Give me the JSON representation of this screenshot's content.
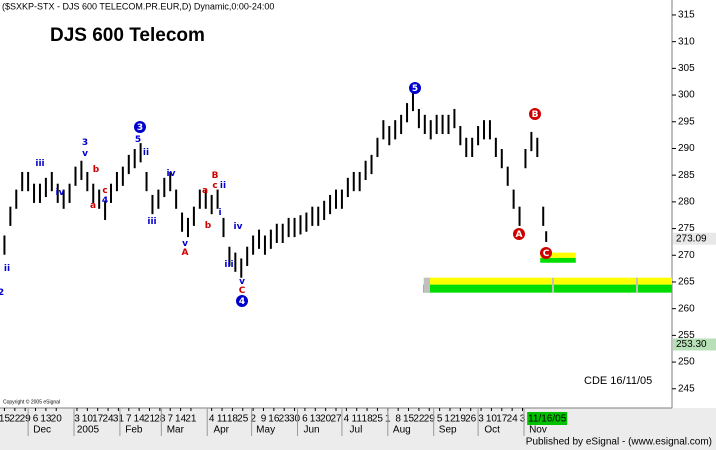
{
  "chart_data": {
    "type": "range",
    "header": "($SXKP-STX - DJS 600 TELECOM.PR.EUR,D) Dynamic,0:00-24:00",
    "title": "DJS 600 Telecom",
    "note": "CDE 16/11/05",
    "copyright": "Copyright © 2005 eSignal",
    "publisher": "Published by eSignal - (www.esignal.com)",
    "color": "#000000",
    "xlim": [
      -3,
      451
    ],
    "ylim": [
      241.4,
      317.8
    ],
    "yticks": [
      245,
      250,
      255,
      260,
      265,
      270,
      275,
      280,
      285,
      290,
      295,
      300,
      305,
      310,
      315
    ],
    "x": [
      0,
      4,
      8,
      12,
      16,
      20,
      24,
      28,
      32,
      36,
      40,
      44,
      48,
      52,
      56,
      60,
      64,
      68,
      72,
      76,
      80,
      84,
      88,
      92,
      96,
      100,
      104,
      108,
      112,
      116,
      120,
      124,
      128,
      132,
      136,
      140,
      144,
      148,
      152,
      156,
      160,
      164,
      168,
      172,
      176,
      180,
      184,
      188,
      192,
      196,
      200,
      204,
      208,
      212,
      216,
      220,
      224,
      228,
      232,
      236,
      240,
      244,
      248,
      252,
      256,
      260,
      264,
      268,
      272,
      276,
      280,
      284,
      288,
      292,
      296,
      300,
      304,
      308,
      312,
      316,
      320,
      324,
      328,
      332,
      336,
      340,
      344,
      348,
      352,
      356,
      360,
      364,
      366
    ],
    "high": [
      273.7,
      279.1,
      282.3,
      285.6,
      285.6,
      283.4,
      283.4,
      284.5,
      285.6,
      283.4,
      282.3,
      283.4,
      286.6,
      287.7,
      285.6,
      283.4,
      282.3,
      280.2,
      283.4,
      285.6,
      286.6,
      288.8,
      289.9,
      291,
      285.6,
      281.3,
      282.3,
      284.5,
      285.6,
      282.3,
      278,
      277,
      279.1,
      282.3,
      282.3,
      281.3,
      282.3,
      277,
      271.6,
      270.5,
      269.4,
      271.6,
      273.7,
      274.8,
      273.7,
      274.8,
      275.9,
      275.9,
      277,
      277,
      277.5,
      278,
      279.1,
      279.1,
      280.2,
      281.3,
      282.3,
      282.3,
      284.5,
      285.6,
      285.6,
      287.7,
      288.8,
      292,
      295.3,
      294.2,
      295.3,
      296.3,
      298.5,
      300.6,
      297.4,
      296.3,
      295.3,
      296.3,
      296.3,
      296.3,
      297.4,
      294.2,
      292,
      292,
      294.2,
      295.3,
      295.3,
      292,
      289.9,
      286.6,
      282.3,
      279.1,
      289.9,
      293.1,
      292,
      279.1,
      274.5
    ],
    "low": [
      270.1,
      275.5,
      278.7,
      282,
      282,
      279.8,
      279.8,
      280.9,
      282,
      279.8,
      278.7,
      279.8,
      283,
      284.1,
      282,
      279.8,
      278.7,
      276.6,
      279.8,
      282,
      283,
      285.2,
      286.3,
      287.4,
      282,
      277.7,
      278.7,
      280.9,
      282,
      278.7,
      274.4,
      273.4,
      275.5,
      278.7,
      278.7,
      277.7,
      278.7,
      273.4,
      268,
      266.9,
      265.8,
      268,
      270.1,
      271.2,
      270.1,
      271.2,
      272.3,
      272.3,
      273.4,
      273.4,
      273.9,
      274.4,
      275.5,
      275.5,
      276.6,
      277.7,
      278.7,
      278.7,
      280.9,
      282,
      282,
      284.1,
      285.2,
      288.4,
      291.7,
      290.6,
      291.7,
      292.7,
      294.9,
      297,
      293.8,
      292.7,
      291.7,
      292.7,
      292.7,
      292.7,
      293.8,
      290.6,
      288.4,
      288.4,
      290.6,
      291.7,
      291.7,
      288.4,
      286.3,
      283,
      278.7,
      275.5,
      286.3,
      289.5,
      288.4,
      275.5,
      272.5
    ],
    "xticks": [
      {
        "value": 0,
        "label": "15"
      },
      {
        "value": 7,
        "label": "22"
      },
      {
        "value": 14,
        "label": "29"
      },
      {
        "value": 21,
        "label": "6"
      },
      {
        "value": 28,
        "label": "13"
      },
      {
        "value": 35,
        "label": "20"
      },
      {
        "value": 49,
        "label": "3"
      },
      {
        "value": 56,
        "label": "10"
      },
      {
        "value": 63,
        "label": "17"
      },
      {
        "value": 70,
        "label": "24"
      },
      {
        "value": 77,
        "label": "31"
      },
      {
        "value": 84,
        "label": "7"
      },
      {
        "value": 91,
        "label": "14"
      },
      {
        "value": 98,
        "label": "21"
      },
      {
        "value": 105,
        "label": "28"
      },
      {
        "value": 112,
        "label": "7"
      },
      {
        "value": 119,
        "label": "14"
      },
      {
        "value": 126,
        "label": "21"
      },
      {
        "value": 140,
        "label": "4"
      },
      {
        "value": 147,
        "label": "11"
      },
      {
        "value": 154,
        "label": "18"
      },
      {
        "value": 161,
        "label": "25"
      },
      {
        "value": 168,
        "label": "2"
      },
      {
        "value": 175,
        "label": "9"
      },
      {
        "value": 182,
        "label": "16"
      },
      {
        "value": 189,
        "label": "23"
      },
      {
        "value": 196,
        "label": "30"
      },
      {
        "value": 203,
        "label": "6"
      },
      {
        "value": 210,
        "label": "13"
      },
      {
        "value": 217,
        "label": "20"
      },
      {
        "value": 224,
        "label": "27"
      },
      {
        "value": 231,
        "label": "4"
      },
      {
        "value": 238,
        "label": "11"
      },
      {
        "value": 245,
        "label": "18"
      },
      {
        "value": 252,
        "label": "25"
      },
      {
        "value": 259,
        "label": "1"
      },
      {
        "value": 266,
        "label": "8"
      },
      {
        "value": 273,
        "label": "15"
      },
      {
        "value": 280,
        "label": "22"
      },
      {
        "value": 287,
        "label": "29"
      },
      {
        "value": 294,
        "label": "5"
      },
      {
        "value": 301,
        "label": "12"
      },
      {
        "value": 308,
        "label": "19"
      },
      {
        "value": 315,
        "label": "26"
      },
      {
        "value": 322,
        "label": "3"
      },
      {
        "value": 329,
        "label": "10"
      },
      {
        "value": 336,
        "label": "17"
      },
      {
        "value": 343,
        "label": "24"
      },
      {
        "value": 350,
        "label": "3"
      }
    ],
    "month_ticks": [
      {
        "value": 16,
        "label": "Dec"
      },
      {
        "value": 47,
        "label": "2005"
      },
      {
        "value": 78,
        "label": "Feb"
      },
      {
        "value": 106,
        "label": "Mar"
      },
      {
        "value": 137,
        "label": "Apr"
      },
      {
        "value": 167,
        "label": "May"
      },
      {
        "value": 198,
        "label": "Jun"
      },
      {
        "value": 228,
        "label": "Jul"
      },
      {
        "value": 259,
        "label": "Aug"
      },
      {
        "value": 290,
        "label": "Sep"
      },
      {
        "value": 320,
        "label": "Oct"
      },
      {
        "value": 351,
        "label": "Nov"
      }
    ],
    "current_date": {
      "value": 366,
      "label": "11/16/05"
    },
    "price_markers": [
      {
        "value": 273.09,
        "label": "273.09",
        "color": "#e8e8e8"
      },
      {
        "value": 253.3,
        "label": "253.30",
        "color": "#b8e0b8"
      }
    ],
    "zones": [
      {
        "color": "#ffff00",
        "from": 265.8,
        "to": 264.5,
        "start": 283,
        "end": 451
      },
      {
        "color": "#00dd00",
        "from": 264.5,
        "to": 263.0,
        "start": 283,
        "end": 451
      },
      {
        "color": "#ffff00",
        "from": 270.5,
        "to": 269.5,
        "start": 362,
        "end": 386
      },
      {
        "color": "#00dd00",
        "from": 269.5,
        "to": 268.6,
        "start": 362,
        "end": 386
      }
    ],
    "annotations": [
      {
        "text": "ii",
        "color": "#0000cc"
      },
      {
        "text": "iii",
        "color": "#0000cc"
      },
      {
        "text": "iv",
        "color": "#0000cc"
      },
      {
        "text": "3",
        "color": "#0000cc"
      },
      {
        "text": "v",
        "color": "#0000cc"
      },
      {
        "text": "b",
        "color": "#cc0000"
      },
      {
        "text": "a",
        "color": "#cc0000"
      },
      {
        "text": "c",
        "color": "#cc0000"
      },
      {
        "text": "4",
        "color": "#0000cc"
      },
      {
        "text": "3",
        "color": "#0000cc",
        "circled": true
      },
      {
        "text": "5",
        "color": "#0000cc"
      },
      {
        "text": "ii",
        "color": "#0000cc"
      },
      {
        "text": "iii",
        "color": "#0000cc"
      },
      {
        "text": "iv",
        "color": "#0000cc"
      },
      {
        "text": "v",
        "color": "#0000cc"
      },
      {
        "text": "A",
        "color": "#cc0000"
      },
      {
        "text": "a",
        "color": "#cc0000"
      },
      {
        "text": "B",
        "color": "#cc0000"
      },
      {
        "text": "c",
        "color": "#cc0000"
      },
      {
        "text": "ii",
        "color": "#0000cc"
      },
      {
        "text": "b",
        "color": "#cc0000"
      },
      {
        "text": "i",
        "color": "#0000cc"
      },
      {
        "text": "iv",
        "color": "#0000cc"
      },
      {
        "text": "iii",
        "color": "#0000cc"
      },
      {
        "text": "v",
        "color": "#0000cc"
      },
      {
        "text": "C",
        "color": "#cc0000"
      },
      {
        "text": "4",
        "color": "#0000cc",
        "circled": true
      },
      {
        "text": "5",
        "color": "#0000cc",
        "circled": true
      },
      {
        "text": "B",
        "color": "#cc0000",
        "circled": true
      },
      {
        "text": "A",
        "color": "#cc0000",
        "circled": true
      },
      {
        "text": "C",
        "color": "#cc0000",
        "circled": true
      },
      {
        "text": "2",
        "color": "#0000cc"
      }
    ]
  }
}
